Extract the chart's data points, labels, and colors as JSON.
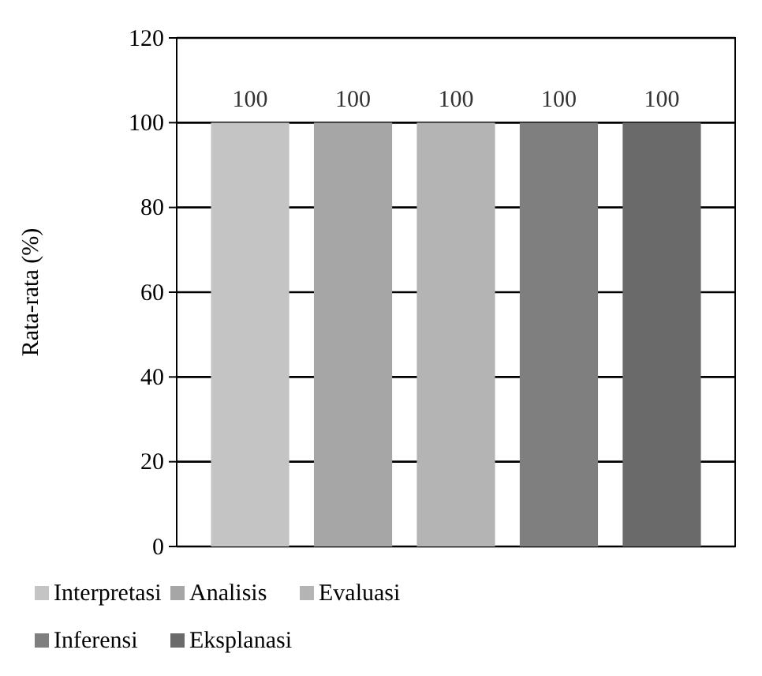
{
  "chart_data": {
    "type": "bar",
    "ylabel": "Rata-rata (%)",
    "categories": [
      null
    ],
    "series": [
      {
        "name": "Interpretasi",
        "color": "#c4c4c4",
        "values": [
          100
        ]
      },
      {
        "name": "Analisis",
        "color": "#a6a6a6",
        "values": [
          100
        ]
      },
      {
        "name": "Evaluasi",
        "color": "#b4b4b4",
        "values": [
          100
        ]
      },
      {
        "name": "Inferensi",
        "color": "#7f7f7f",
        "values": [
          100
        ]
      },
      {
        "name": "Eksplanasi",
        "color": "#6a6a6a",
        "values": [
          100
        ]
      }
    ],
    "ylim": [
      0,
      120
    ],
    "yticks": [
      0,
      20,
      40,
      60,
      80,
      100,
      120
    ],
    "grid": "y",
    "legend": "bottom",
    "data_labels": true
  }
}
